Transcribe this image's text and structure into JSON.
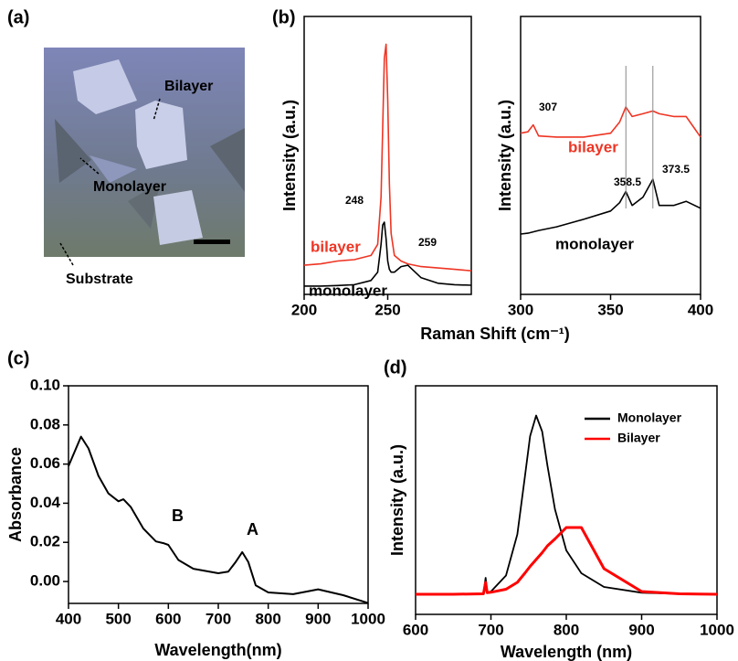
{
  "micrograph": {
    "panel_label": "(a)",
    "labels": [
      "Bilayer",
      "Monolayer",
      "Substrate"
    ]
  },
  "chart_data": [
    {
      "type": "line",
      "panel_label": "(b)",
      "xlabel": "Raman Shift (cm⁻¹)",
      "ylabel": "Intensity (a.u.)",
      "x": [
        200,
        210,
        220,
        230,
        240,
        244,
        246,
        247,
        248,
        249,
        250,
        251,
        252,
        254,
        258,
        262,
        270,
        280,
        290,
        300
      ],
      "series": [
        {
          "name": "bilayer",
          "color": "#ee3524",
          "values": [
            10.5,
            11,
            12,
            12.5,
            14,
            18,
            35,
            60,
            85,
            90,
            70,
            40,
            22,
            14,
            12,
            11,
            10,
            9.5,
            9,
            8.5
          ]
        },
        {
          "name": "monolayer",
          "color": "#000000",
          "values": [
            3,
            3,
            3.2,
            3.5,
            5,
            8,
            18,
            25,
            26,
            20,
            12,
            9,
            8,
            8,
            10,
            10.5,
            6,
            4,
            3.5,
            3.3
          ]
        }
      ],
      "annotations": [
        "248",
        "259"
      ],
      "xlim": [
        200,
        300
      ],
      "ylim": [
        0,
        100
      ],
      "xticks": [
        200,
        250
      ]
    },
    {
      "type": "line",
      "ylabel": "Intensity (a.u.)",
      "x": [
        300,
        304,
        307,
        310,
        320,
        335,
        350,
        355,
        358.5,
        362,
        368,
        373.5,
        377,
        385,
        392,
        400
      ],
      "series": [
        {
          "name": "bilayer",
          "color": "#ee3524",
          "values": [
            58,
            58.5,
            61,
            57,
            56.6,
            56.6,
            58,
            62,
            67.4,
            64,
            65,
            66,
            65,
            64,
            64,
            56.6
          ]
        },
        {
          "name": "monolayer",
          "color": "#000000",
          "values": [
            21.7,
            22,
            22.5,
            23,
            24.3,
            27,
            30,
            33,
            37,
            32,
            35,
            41.4,
            32,
            32,
            33.5,
            31
          ]
        }
      ],
      "annotations": [
        "307",
        "358.5",
        "373.5"
      ],
      "xlim": [
        300,
        400
      ],
      "ylim": [
        0,
        100
      ],
      "xticks": [
        300,
        350,
        400
      ]
    },
    {
      "type": "line",
      "panel_label": "(c)",
      "xlabel": "Wavelength(nm)",
      "ylabel": "Absorbance",
      "x": [
        400,
        425,
        440,
        460,
        480,
        500,
        510,
        525,
        550,
        575,
        590,
        600,
        620,
        650,
        700,
        720,
        735,
        748,
        760,
        775,
        800,
        850,
        900,
        950,
        1000
      ],
      "series": [
        {
          "name": null,
          "color": "#000000",
          "values": [
            0.059,
            0.074,
            0.068,
            0.054,
            0.045,
            0.041,
            0.042,
            0.038,
            0.027,
            0.0205,
            0.0196,
            0.0187,
            0.011,
            0.0065,
            0.0042,
            0.005,
            0.01,
            0.015,
            0.01,
            -0.002,
            -0.0056,
            -0.0065,
            -0.004,
            -0.007,
            -0.011
          ]
        }
      ],
      "annotations": [
        "B",
        "A"
      ],
      "xlim": [
        400,
        1000
      ],
      "ylim": [
        -0.0112,
        0.1
      ],
      "xticks": [
        400,
        500,
        600,
        700,
        800,
        900,
        1000
      ],
      "yticks": [
        {
          "value": 0,
          "label": "0.00"
        },
        0.02,
        0.04,
        0.06,
        0.08,
        {
          "value": 0.1,
          "label": "0.10"
        }
      ]
    },
    {
      "type": "line",
      "panel_label": "(d)",
      "xlabel": "Wavelength (nm)",
      "ylabel": "Intensity (a.u.)",
      "legend": "upper right",
      "x": [
        600,
        650,
        690,
        693,
        695,
        700,
        720,
        735,
        745,
        752,
        760,
        768,
        775,
        785,
        800,
        820,
        850,
        900,
        950,
        1000
      ],
      "series": [
        {
          "name": "Monolayer",
          "color": "#000000",
          "values": [
            8.8,
            8.8,
            9,
            16,
            9.5,
            10,
            17,
            35,
            60,
            78,
            87,
            80,
            65,
            46,
            28,
            18,
            12,
            9.5,
            9,
            8.8
          ]
        },
        {
          "name": "Bilayer",
          "color": "#ff0000",
          "values": [
            8.8,
            8.8,
            9,
            14,
            9.5,
            9.7,
            11,
            14,
            18,
            21,
            24,
            27,
            30,
            33,
            38,
            38,
            20,
            10,
            9,
            8.8
          ]
        }
      ],
      "xlim": [
        600,
        1000
      ],
      "ylim": [
        0,
        100
      ],
      "xticks": [
        600,
        700,
        800,
        900,
        1000
      ]
    }
  ]
}
